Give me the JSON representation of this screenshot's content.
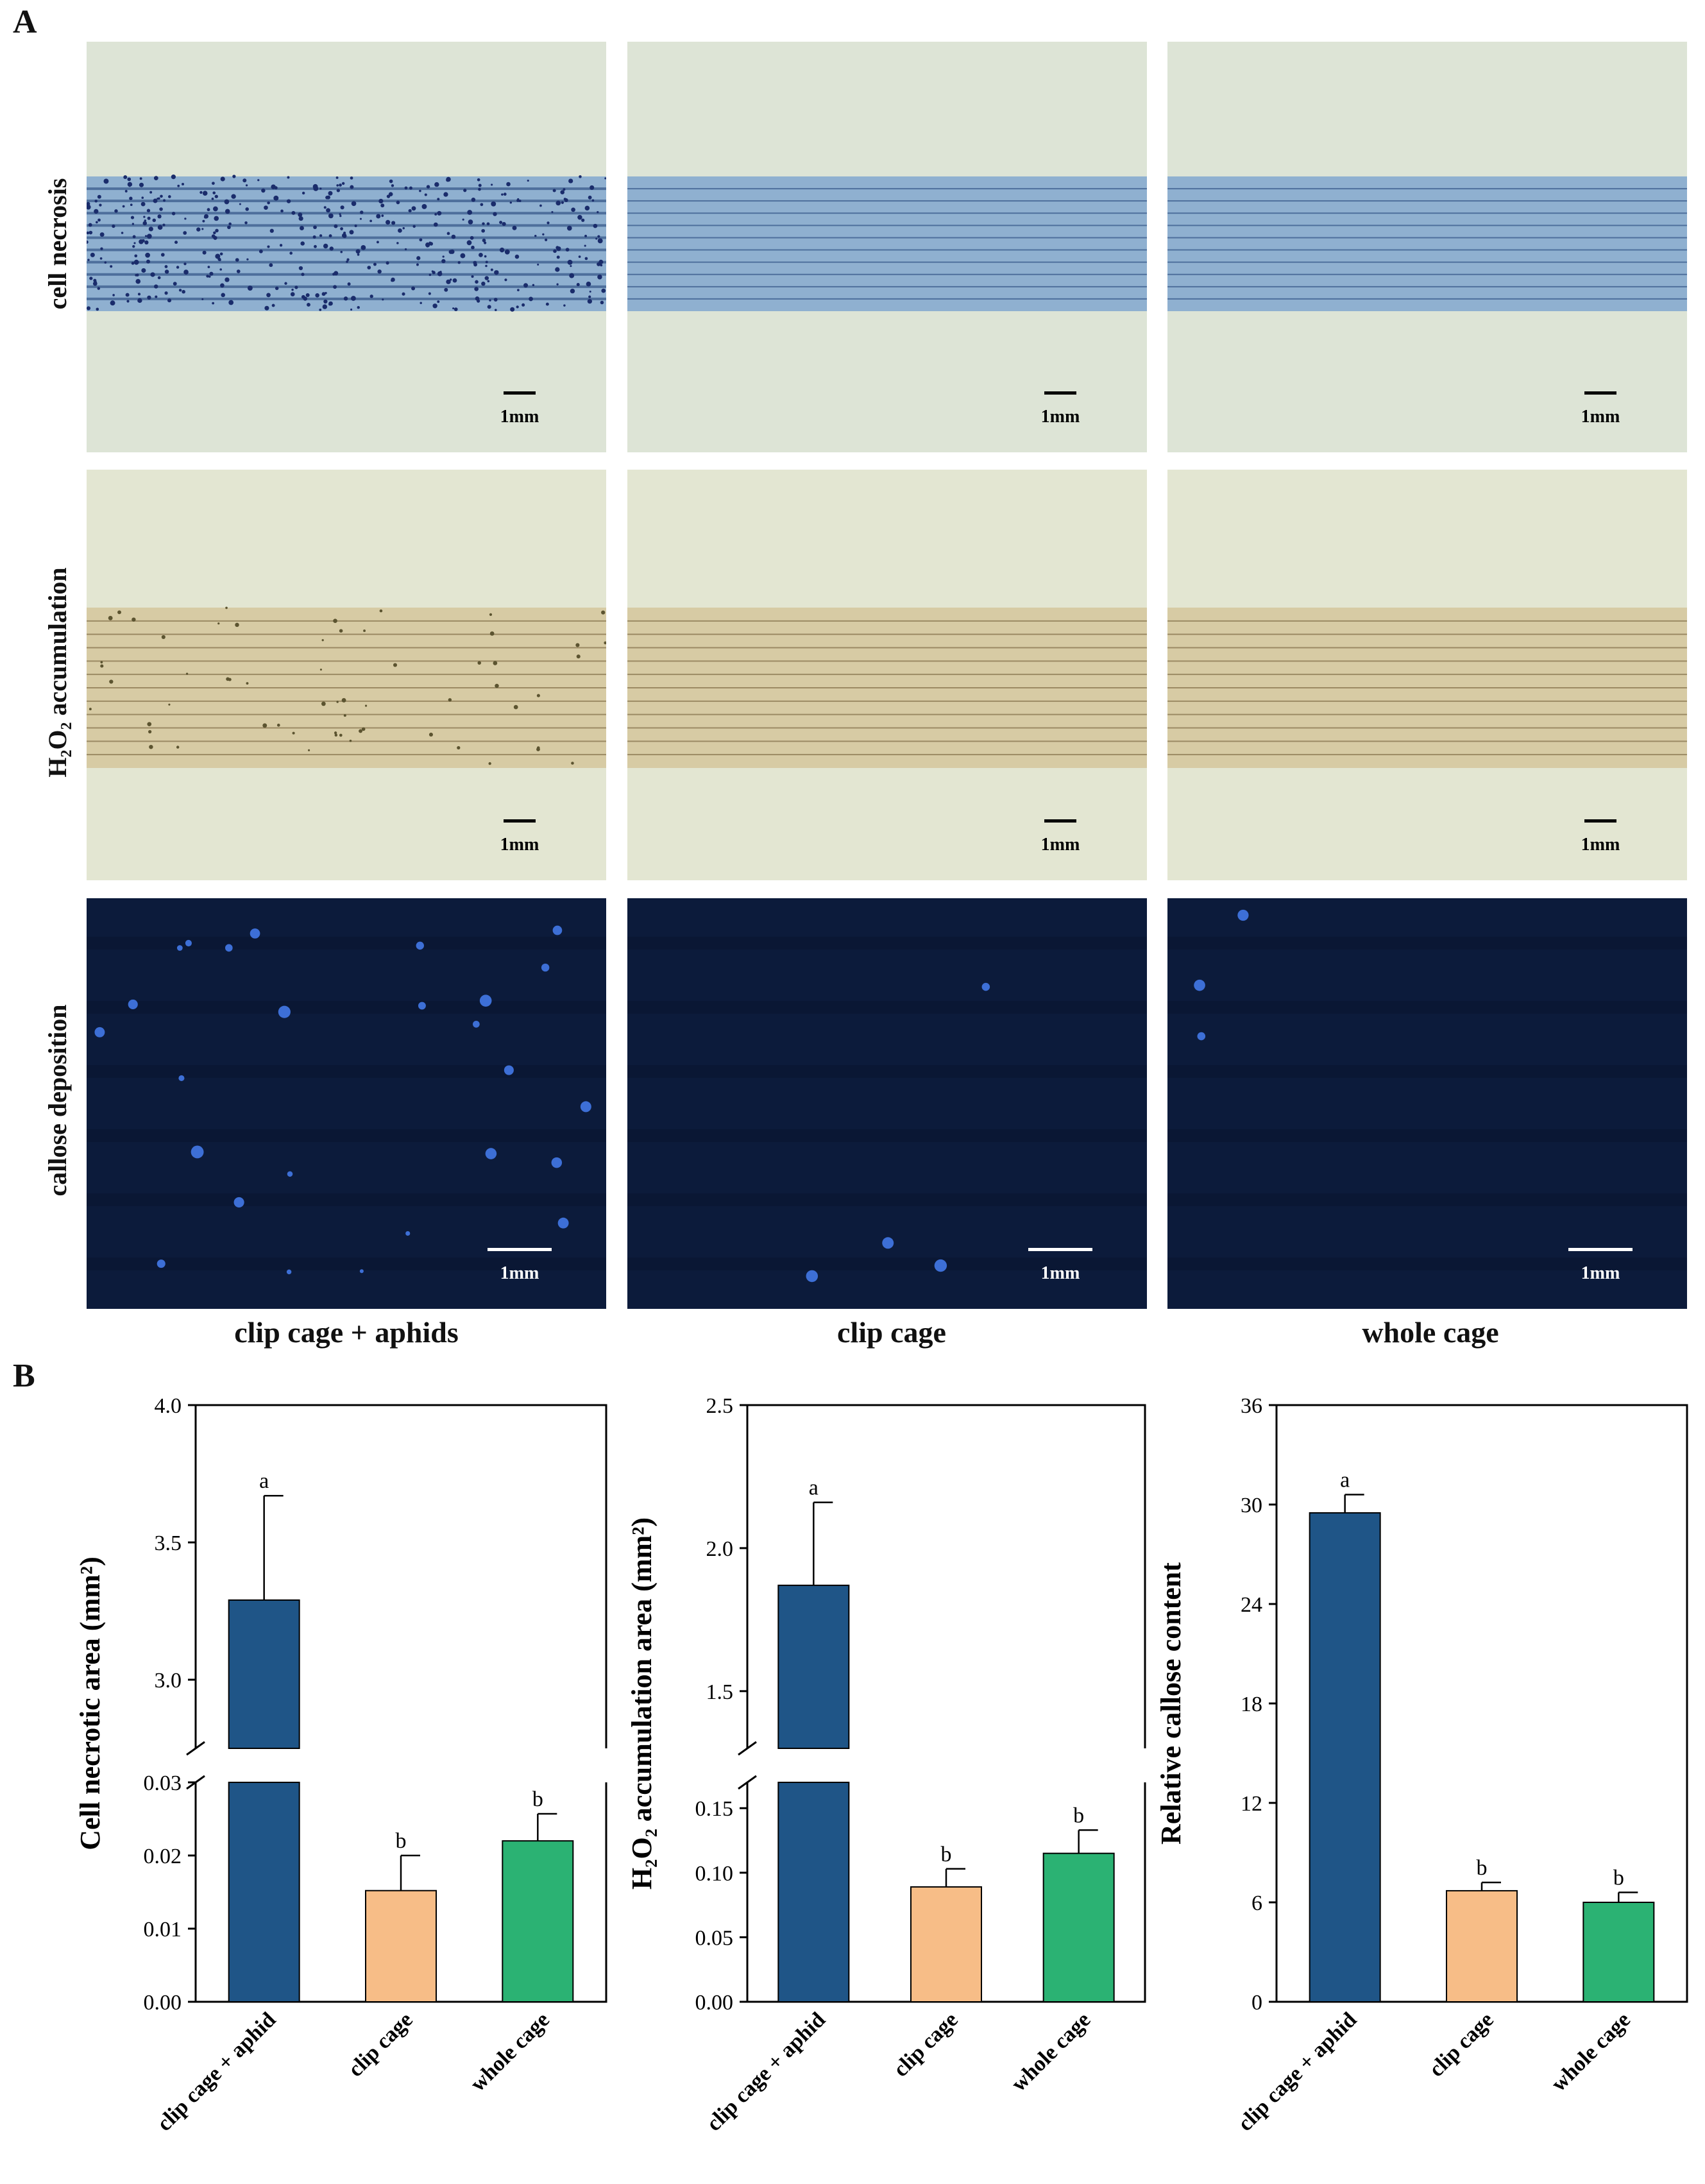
{
  "panel_a_label": "A",
  "panel_b_label": "B",
  "row_labels": [
    "cell necrosis",
    "H₂O₂ accumulation",
    "callose deposition"
  ],
  "column_labels": [
    "clip cage +  aphids",
    "clip cage",
    "whole cage"
  ],
  "scale_bar_label": "1mm",
  "colors": {
    "clip_cage_aphid": "#1f5587",
    "clip_cage": "#f7bd87",
    "whole_cage": "#2bb273",
    "necrosis_bg": "#dde4d6",
    "necrosis_stripe": "#8fb0d0",
    "h2o2_bg": "#e3e6d2",
    "h2o2_stripe": "#d7cba4",
    "callose_bg": "#0c1b3b"
  },
  "chart_data": [
    {
      "type": "bar",
      "ylabel": "Cell necrotic area (mm²)",
      "categories": [
        "clip cage + aphid",
        "clip cage",
        "whole cage"
      ],
      "values": [
        3.29,
        0.0152,
        0.022
      ],
      "errors": [
        0.38,
        0.0048,
        0.0037
      ],
      "letters": [
        "a",
        "b",
        "b"
      ],
      "axis_break": {
        "lower": [
          0,
          0.03
        ],
        "upper": [
          2.75,
          4.0
        ]
      },
      "lower_ticks": [
        "0.00",
        "0.01",
        "0.02",
        "0.03"
      ],
      "upper_ticks": [
        "3.0",
        "3.5",
        "4.0"
      ]
    },
    {
      "type": "bar",
      "ylabel": "H₂O₂ accumulation area (mm²)",
      "categories": [
        "clip cage + aphid",
        "clip cage",
        "whole cage"
      ],
      "values": [
        1.87,
        0.089,
        0.115
      ],
      "errors": [
        0.29,
        0.014,
        0.018
      ],
      "letters": [
        "a",
        "b",
        "b"
      ],
      "axis_break": {
        "lower": [
          0,
          0.17
        ],
        "upper": [
          1.3,
          2.5
        ]
      },
      "lower_ticks": [
        "0.00",
        "0.05",
        "0.10",
        "0.15"
      ],
      "upper_ticks": [
        "1.5",
        "2.0",
        "2.5"
      ]
    },
    {
      "type": "bar",
      "ylabel": "Relative callose content",
      "categories": [
        "clip cage + aphid",
        "clip cage",
        "whole cage"
      ],
      "values": [
        29.5,
        6.7,
        6.0
      ],
      "errors": [
        1.1,
        0.5,
        0.6
      ],
      "letters": [
        "a",
        "b",
        "b"
      ],
      "ylim": [
        0,
        36
      ],
      "ticks": [
        "0",
        "6",
        "12",
        "18",
        "24",
        "30",
        "36"
      ]
    }
  ]
}
